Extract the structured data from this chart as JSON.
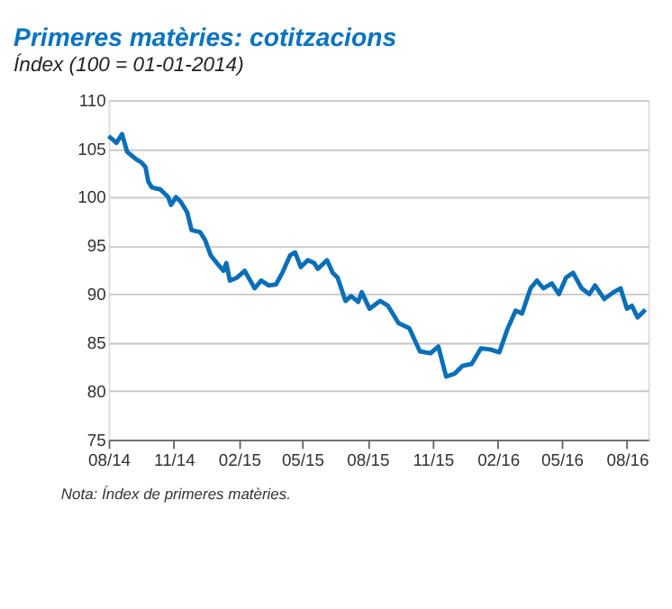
{
  "chart_data": {
    "type": "line",
    "title": "Primeres matèries: cotitzacions",
    "subtitle": "Índex (100 = 01-01-2014)",
    "annotations": [
      "Nota: Índex de primeres matèries."
    ],
    "x": [
      "2014-08-01",
      "2014-08-06",
      "2014-08-12",
      "2014-08-20",
      "2014-08-27",
      "2014-09-09",
      "2014-09-16",
      "2014-09-22",
      "2014-09-26",
      "2014-10-01",
      "2014-10-13",
      "2014-10-24",
      "2014-10-28",
      "2014-11-04",
      "2014-11-11",
      "2014-11-20",
      "2014-11-26",
      "2014-12-08",
      "2014-12-15",
      "2014-12-23",
      "2015-01-03",
      "2015-01-10",
      "2015-01-14",
      "2015-01-19",
      "2015-01-29",
      "2015-02-09",
      "2015-02-23",
      "2015-03-04",
      "2015-03-15",
      "2015-03-25",
      "2015-04-03",
      "2015-04-14",
      "2015-04-21",
      "2015-04-29",
      "2015-05-09",
      "2015-05-18",
      "2015-05-23",
      "2015-06-05",
      "2015-06-13",
      "2015-06-20",
      "2015-07-01",
      "2015-07-09",
      "2015-07-19",
      "2015-07-24",
      "2015-08-04",
      "2015-08-19",
      "2015-08-30",
      "2015-09-14",
      "2015-09-29",
      "2015-10-14",
      "2015-10-29",
      "2015-11-09",
      "2015-11-20",
      "2015-12-02",
      "2015-12-13",
      "2015-12-26",
      "2016-01-08",
      "2016-01-21",
      "2016-02-03",
      "2016-02-15",
      "2016-02-26",
      "2016-03-06",
      "2016-03-18",
      "2016-03-27",
      "2016-04-05",
      "2016-04-17",
      "2016-04-27",
      "2016-05-07",
      "2016-05-17",
      "2016-05-29",
      "2016-06-09",
      "2016-06-17",
      "2016-06-30",
      "2016-07-13",
      "2016-07-23",
      "2016-08-01",
      "2016-08-08",
      "2016-08-16",
      "2016-08-27"
    ],
    "series": [
      {
        "color": "#0b6fb8",
        "values": [
          106.3,
          106.0,
          105.6,
          106.5,
          104.7,
          103.9,
          103.6,
          103.1,
          101.6,
          101.0,
          100.8,
          100.0,
          99.2,
          100.0,
          99.5,
          98.4,
          96.6,
          96.4,
          95.6,
          94.0,
          93.0,
          92.4,
          93.2,
          91.4,
          91.7,
          92.4,
          90.6,
          91.4,
          90.9,
          91.0,
          92.2,
          94.0,
          94.3,
          92.8,
          93.5,
          93.2,
          92.6,
          93.5,
          92.2,
          91.7,
          89.3,
          89.8,
          89.2,
          90.2,
          88.5,
          89.3,
          88.8,
          87.0,
          86.5,
          84.1,
          83.9,
          84.6,
          81.5,
          81.8,
          82.6,
          82.8,
          84.4,
          84.3,
          84.0,
          86.5,
          88.3,
          88.0,
          90.6,
          91.4,
          90.6,
          91.1,
          90.0,
          91.7,
          92.2,
          90.6,
          90.0,
          90.9,
          89.5,
          90.2,
          90.6,
          88.5,
          88.8,
          87.6,
          88.4
        ]
      }
    ],
    "xlim": [
      "2014-08-01",
      "2016-08-31"
    ],
    "xticks": [
      {
        "value": "2014-08-01",
        "label": "08/14"
      },
      {
        "value": "2014-11-01",
        "label": "11/14"
      },
      {
        "value": "2015-02-01",
        "label": "02/15"
      },
      {
        "value": "2015-05-01",
        "label": "05/15"
      },
      {
        "value": "2015-08-01",
        "label": "08/15"
      },
      {
        "value": "2015-11-01",
        "label": "11/15"
      },
      {
        "value": "2016-02-01",
        "label": "02/16"
      },
      {
        "value": "2016-05-01",
        "label": "05/16"
      },
      {
        "value": "2016-08-01",
        "label": "08/16"
      }
    ],
    "ylim": [
      75,
      110
    ],
    "yticks": [
      75,
      80,
      85,
      90,
      95,
      100,
      105,
      110
    ],
    "grid": "y",
    "line_style": "solid",
    "marker": "none"
  }
}
